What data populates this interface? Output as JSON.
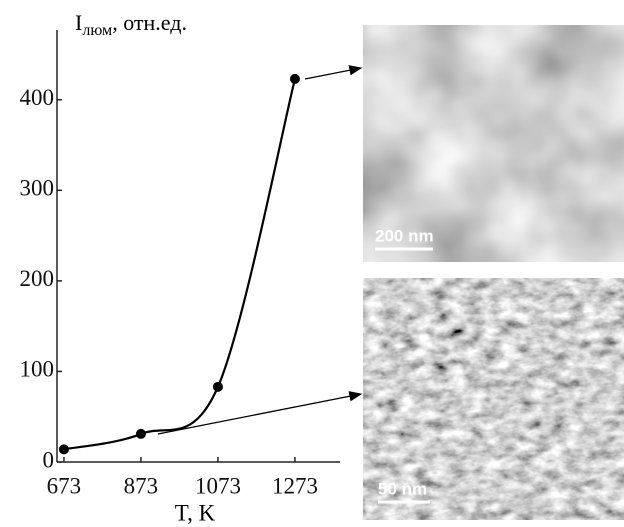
{
  "chart_data": {
    "type": "line",
    "ylabel": "I",
    "ylabel_sub": "люм",
    "ylabel_rest": ", отн.ед.",
    "xlabel": "T, K",
    "x": [
      673,
      873,
      1073,
      1273
    ],
    "values": [
      14,
      31,
      83,
      423
    ],
    "color": "#000000",
    "xlim": [
      655,
      1390
    ],
    "ylim": [
      0,
      477
    ],
    "xticks": [
      673,
      873,
      1073,
      1273
    ],
    "yticks": [
      0,
      100,
      200,
      300,
      400
    ]
  },
  "images": [
    {
      "scale_label": "200 nm"
    },
    {
      "scale_label": "50 nm"
    }
  ]
}
